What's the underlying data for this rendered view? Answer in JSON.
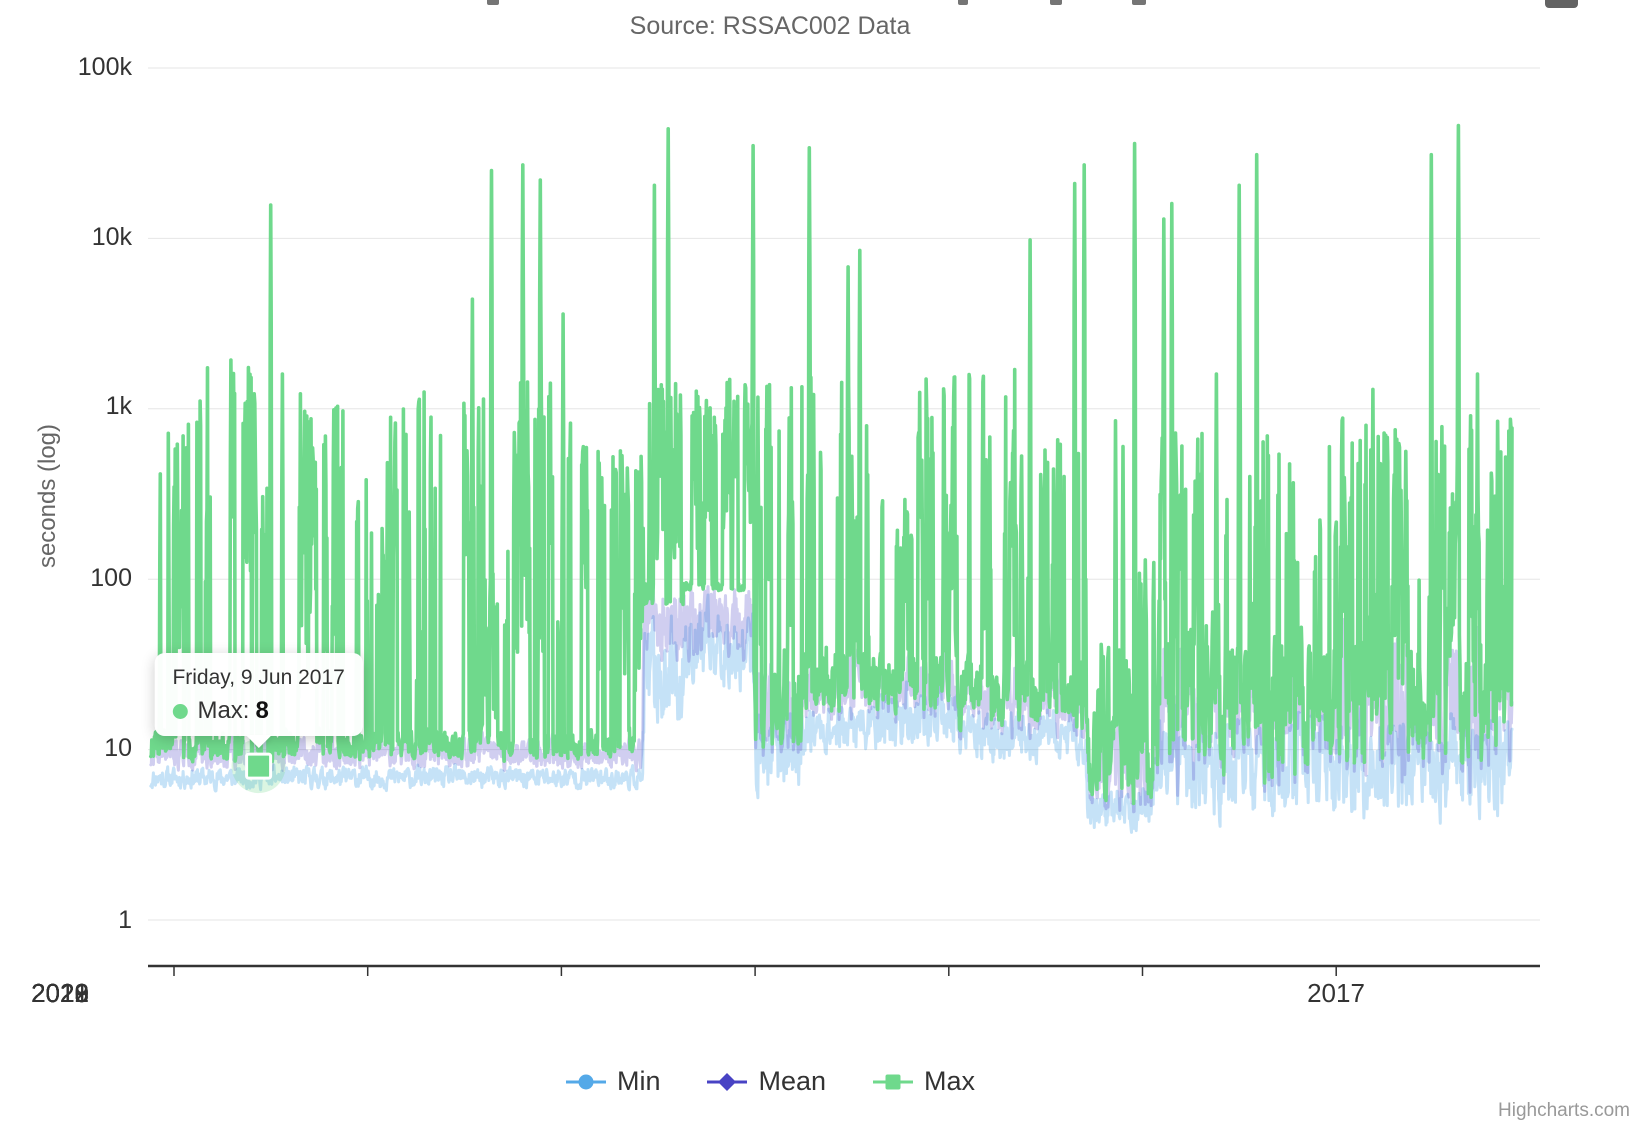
{
  "chart": {
    "subtitle": "Source: RSSAC002 Data",
    "y_axis": {
      "title": "seconds (log)",
      "tick_labels": [
        "100k",
        "10k",
        "1k",
        "100",
        "10",
        "1"
      ]
    },
    "x_axis": {
      "tick_labels": [
        "2017",
        "2018",
        "2019",
        "2020",
        "2021",
        "2022",
        "2023"
      ]
    },
    "legend": {
      "items": [
        {
          "label": "Min",
          "symbol": "circle"
        },
        {
          "label": "Mean",
          "symbol": "diamond"
        },
        {
          "label": "Max",
          "symbol": "square"
        }
      ]
    },
    "credits": "Highcharts.com"
  },
  "tooltip": {
    "date": "Friday, 9 Jun 2017",
    "series_label": "Max:",
    "value": "8",
    "point": {
      "x_year": 2017.437,
      "value": 8
    }
  },
  "colors": {
    "min": "#54A9E8",
    "mean": "#4843C4",
    "max": "#6FD98C",
    "grid": "#e6e6e6",
    "axis": "#333333",
    "text": "#333333",
    "muted": "#666666",
    "credits": "#999999"
  },
  "chart_data": {
    "type": "line",
    "title": "",
    "subtitle": "Source: RSSAC002 Data",
    "ylabel": "seconds (log)",
    "yscale": "log",
    "ylim": [
      1,
      100000
    ],
    "y_tick_values": [
      1,
      10,
      100,
      1000,
      10000,
      100000
    ],
    "xlim": [
      2016.88,
      2023.91
    ],
    "x_unit": "decimal_year",
    "x_tick_years": [
      2017,
      2018,
      2019,
      2020,
      2021,
      2022,
      2023
    ],
    "legend_position": "bottom",
    "grid": "horizontal",
    "series_names": [
      "Min",
      "Mean",
      "Max"
    ],
    "note": "Daily series 2017-2023; values approximated from pixel positions on the log axis. Envelopes give typical daily fluctuation band per period.",
    "envelope_format": "[from_year, to_year, typical_low_seconds, typical_high_seconds]",
    "max_envelope": [
      [
        2016.88,
        2017.08,
        7,
        950
      ],
      [
        2017.08,
        2017.32,
        7,
        2300
      ],
      [
        2017.32,
        2017.45,
        7,
        1900
      ],
      [
        2017.45,
        2017.58,
        7,
        400
      ],
      [
        2017.58,
        2017.75,
        7,
        1400
      ],
      [
        2017.75,
        2017.92,
        7,
        1200
      ],
      [
        2017.92,
        2018.1,
        7,
        450
      ],
      [
        2018.1,
        2018.45,
        8,
        1350
      ],
      [
        2018.45,
        2018.6,
        8,
        1300
      ],
      [
        2018.6,
        2018.72,
        8,
        130
      ],
      [
        2018.72,
        2018.95,
        8,
        1500
      ],
      [
        2018.95,
        2019.1,
        8,
        1300
      ],
      [
        2019.1,
        2019.42,
        8,
        600
      ],
      [
        2019.42,
        2019.63,
        70,
        1500
      ],
      [
        2019.63,
        2019.99,
        85,
        1500
      ],
      [
        2019.99,
        2020.19,
        9,
        1600
      ],
      [
        2020.19,
        2020.24,
        3.8,
        300
      ],
      [
        2020.24,
        2020.45,
        10,
        1700
      ],
      [
        2020.45,
        2020.62,
        10,
        1000
      ],
      [
        2020.62,
        2020.8,
        10,
        500
      ],
      [
        2020.8,
        2021.05,
        10,
        1600
      ],
      [
        2021.05,
        2021.4,
        8,
        1700
      ],
      [
        2021.4,
        2021.71,
        7,
        700
      ],
      [
        2021.71,
        2021.95,
        3,
        45
      ],
      [
        2021.95,
        2022.08,
        3,
        160
      ],
      [
        2022.08,
        2022.45,
        3,
        800
      ],
      [
        2022.45,
        2022.68,
        3,
        900
      ],
      [
        2022.68,
        2023.1,
        3,
        900
      ],
      [
        2023.1,
        2023.45,
        3,
        900
      ],
      [
        2023.45,
        2023.7,
        3,
        1000
      ],
      [
        2023.7,
        2023.91,
        3,
        900
      ]
    ],
    "max_spikes": [
      [
        2017.5,
        15700
      ],
      [
        2017.56,
        1600
      ],
      [
        2018.54,
        4400
      ],
      [
        2018.64,
        25000
      ],
      [
        2018.8,
        27000
      ],
      [
        2018.89,
        22000
      ],
      [
        2019.01,
        3600
      ],
      [
        2019.48,
        20500
      ],
      [
        2019.55,
        44000
      ],
      [
        2019.99,
        35000
      ],
      [
        2020.28,
        34000
      ],
      [
        2020.48,
        6800
      ],
      [
        2020.54,
        8500
      ],
      [
        2021.42,
        9800
      ],
      [
        2021.65,
        21000
      ],
      [
        2021.7,
        27000
      ],
      [
        2021.86,
        850
      ],
      [
        2021.9,
        600
      ],
      [
        2021.96,
        36000
      ],
      [
        2022.11,
        13000
      ],
      [
        2022.15,
        16000
      ],
      [
        2022.38,
        1600
      ],
      [
        2022.5,
        20500
      ],
      [
        2022.59,
        31000
      ],
      [
        2023.19,
        1300
      ],
      [
        2023.49,
        31000
      ],
      [
        2023.63,
        46000
      ],
      [
        2023.73,
        1600
      ]
    ],
    "min_envelope": [
      [
        2016.88,
        2019.42,
        5.5,
        8.5
      ],
      [
        2019.42,
        2019.63,
        9,
        80
      ],
      [
        2019.63,
        2019.99,
        18,
        90
      ],
      [
        2019.99,
        2020.24,
        4,
        25
      ],
      [
        2020.24,
        2020.62,
        8,
        22
      ],
      [
        2020.62,
        2021.05,
        8,
        30
      ],
      [
        2021.05,
        2021.71,
        7,
        20
      ],
      [
        2021.71,
        2022.05,
        2.9,
        7
      ],
      [
        2022.05,
        2023.91,
        2.9,
        22
      ]
    ],
    "mean_envelope": [
      [
        2016.88,
        2019.42,
        7,
        13
      ],
      [
        2019.42,
        2019.99,
        25,
        120
      ],
      [
        2019.99,
        2020.24,
        5,
        40
      ],
      [
        2020.24,
        2021.05,
        11,
        45
      ],
      [
        2021.05,
        2021.71,
        9,
        40
      ],
      [
        2021.71,
        2022.05,
        3,
        18
      ],
      [
        2022.05,
        2023.91,
        3.2,
        90
      ]
    ]
  }
}
